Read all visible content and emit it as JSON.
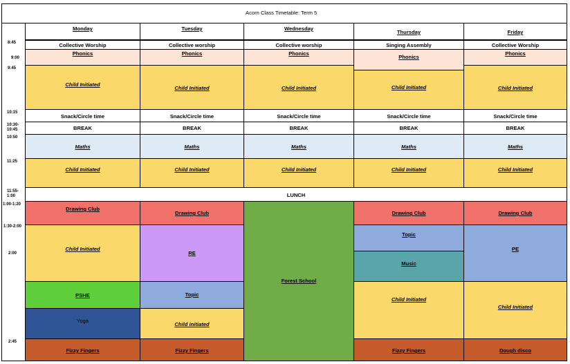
{
  "title": "Acorn Class Timetable: Term 5",
  "days": [
    "Monday",
    "Tuesday",
    "Wednesday",
    "Thursday",
    "Friday"
  ],
  "times": {
    "t845": "8:45",
    "t900": "9:00",
    "t945": "9:45",
    "t1015": "10:15",
    "t1030": "10:30-\n10:45",
    "t1050": "10:50",
    "t1125": "11:25",
    "t1155": "11:55-\n1:00",
    "t100": "1:00-1:20",
    "t130": "1:30-2:00",
    "t200": "2:00",
    "t245": "2:45"
  },
  "worship": [
    "Collective Worship",
    "Collective worship",
    "Collective worship",
    "Singing Assembly",
    "Collective Worship"
  ],
  "phonics": "Phonics",
  "child_initiated": "Child Initiated",
  "child_initiated_lower": "Child initiated",
  "snack": "Snack/Circle time",
  "break": "BREAK",
  "maths": "Maths",
  "lunch": "LUNCH",
  "drawing_club": "Drawing Club",
  "forest_school": "Forest School",
  "re": "RE",
  "topic": "Topic",
  "pe": "PE",
  "music": "Music",
  "pshe": "PSHE",
  "yoga": "Yoga",
  "fizzy_fingers": "Fizzy Fingers",
  "dough_disco": "Dough disco",
  "colors": {
    "phonics": "#fbe3d6",
    "child_initiated": "#fbd86a",
    "maths": "#deeaf6",
    "drawing_club": "#ef7169",
    "forest_school": "#70ad47",
    "re": "#cc99f6",
    "topic": "#8faadc",
    "music": "#5aa5a9",
    "pshe": "#5ecf3a",
    "yoga": "#2f5597",
    "fizzy_fingers": "#c55a2b"
  }
}
